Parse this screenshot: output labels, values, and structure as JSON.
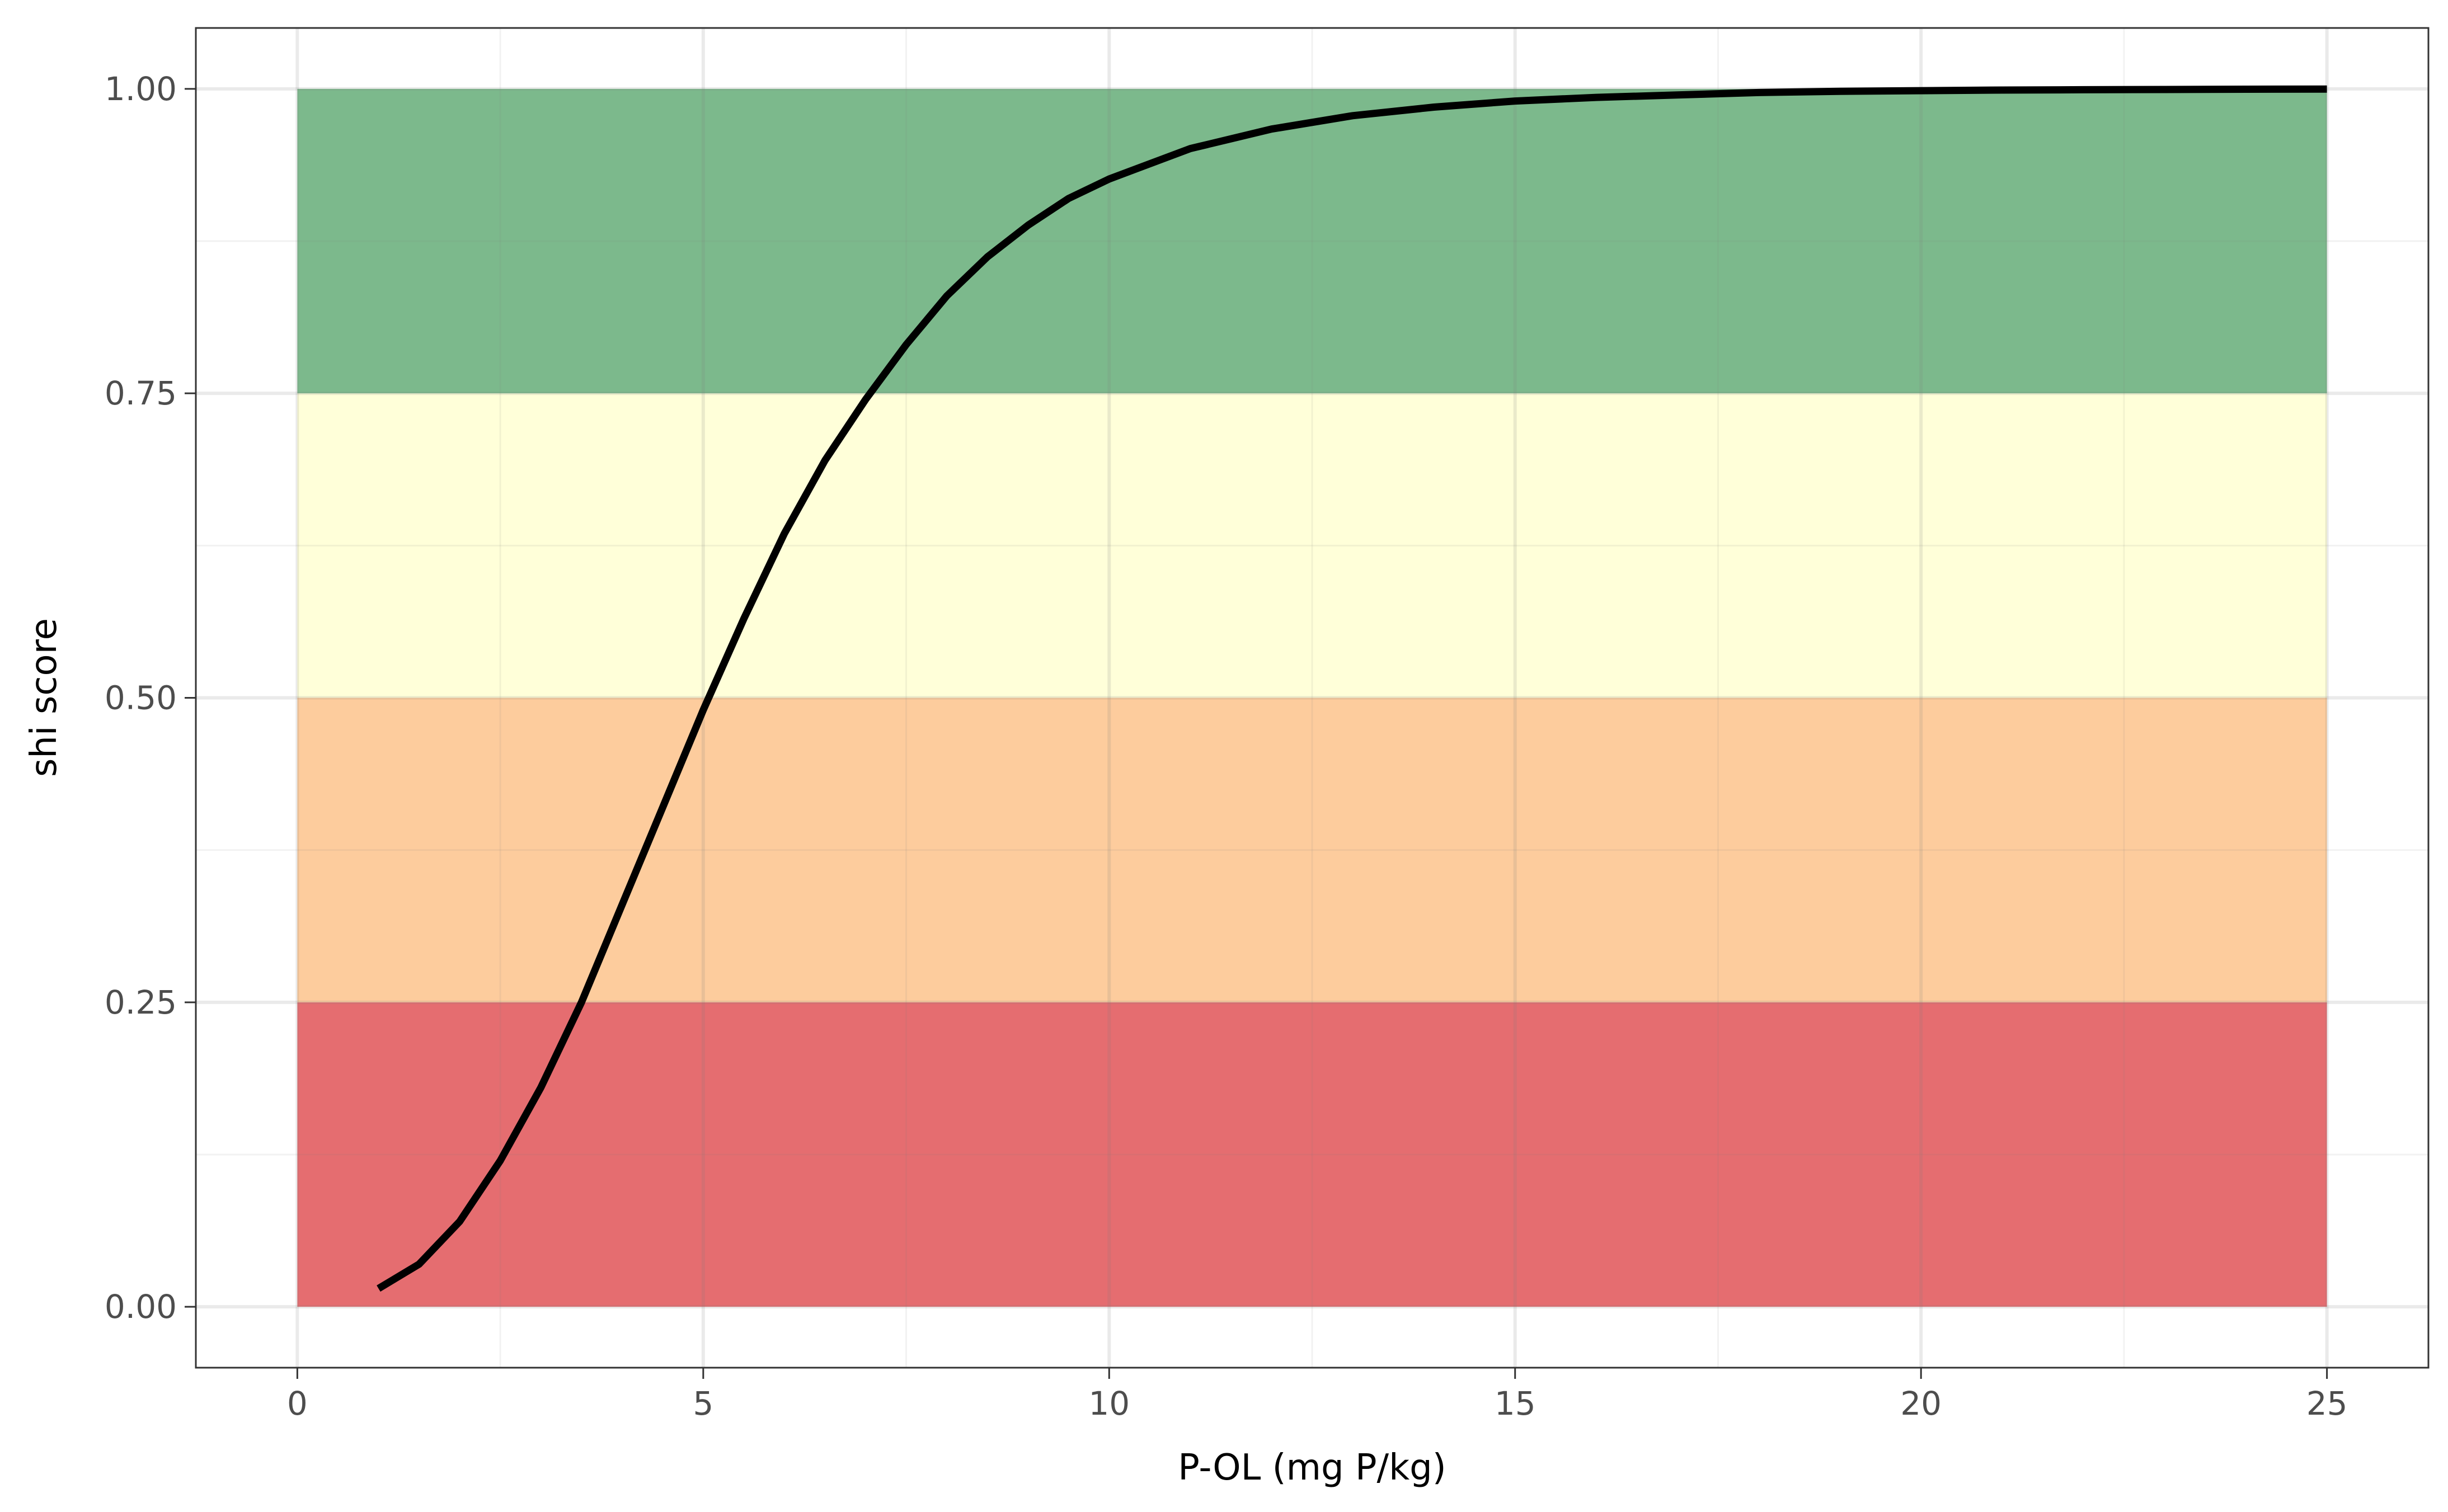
{
  "chart_data": {
    "type": "line",
    "title": "",
    "xlabel": "P-OL (mg P/kg)",
    "ylabel": "shi score",
    "xlim": [
      -1.25,
      26.25
    ],
    "ylim": [
      -0.05,
      1.05
    ],
    "x_ticks": [
      0,
      5,
      10,
      15,
      20,
      25
    ],
    "y_ticks": [
      0.0,
      0.25,
      0.5,
      0.75,
      1.0
    ],
    "x_tick_labels": [
      "0",
      "5",
      "10",
      "15",
      "20",
      "25"
    ],
    "y_tick_labels": [
      "0.00",
      "0.25",
      "0.50",
      "0.75",
      "1.00"
    ],
    "grid": true,
    "legend": "none",
    "bands": [
      {
        "ymin": 0.0,
        "ymax": 0.25,
        "xmin": 0,
        "xmax": 25,
        "color": "#e56d70"
      },
      {
        "ymin": 0.25,
        "ymax": 0.5,
        "xmin": 0,
        "xmax": 25,
        "color": "#fdcc9d"
      },
      {
        "ymin": 0.5,
        "ymax": 0.75,
        "xmin": 0,
        "xmax": 25,
        "color": "#ffffd9"
      },
      {
        "ymin": 0.75,
        "ymax": 1.0,
        "xmin": 0,
        "xmax": 25,
        "color": "#7cb98c"
      }
    ],
    "series": [
      {
        "color": "#000000",
        "x": [
          1,
          1.5,
          2,
          2.5,
          3,
          3.5,
          4,
          4.5,
          5,
          5.5,
          6,
          6.5,
          7,
          7.5,
          8,
          8.5,
          9,
          9.5,
          10,
          11,
          12,
          13,
          14,
          15,
          16,
          17,
          18,
          19,
          20,
          21,
          22,
          23,
          24,
          25
        ],
        "y": [
          0.015,
          0.035,
          0.07,
          0.12,
          0.18,
          0.25,
          0.33,
          0.41,
          0.49,
          0.565,
          0.635,
          0.695,
          0.745,
          0.79,
          0.83,
          0.862,
          0.888,
          0.91,
          0.926,
          0.951,
          0.967,
          0.978,
          0.985,
          0.99,
          0.993,
          0.995,
          0.997,
          0.998,
          0.9985,
          0.999,
          0.9993,
          0.9995,
          0.9997,
          0.9998
        ]
      }
    ]
  }
}
